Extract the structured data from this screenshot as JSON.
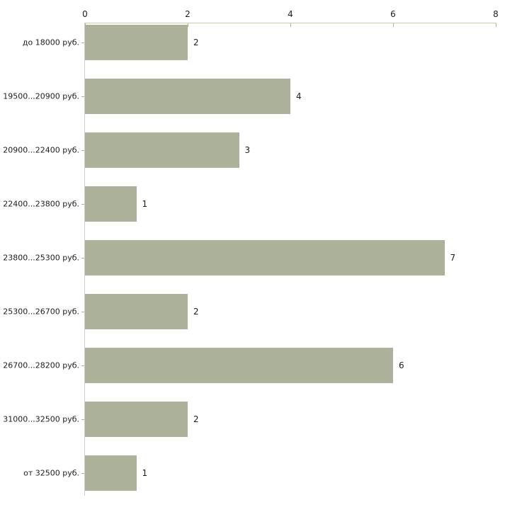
{
  "chart_data": {
    "type": "bar",
    "orientation": "horizontal",
    "title": "",
    "xlabel": "",
    "ylabel": "",
    "categories": [
      "до 18000 руб.",
      "19500...20900 руб.",
      "20900...22400 руб.",
      "22400...23800 руб.",
      "23800...25300 руб.",
      "25300...26700 руб.",
      "26700...28200 руб.",
      "31000...32500 руб.",
      "от 32500 руб."
    ],
    "values": [
      2,
      4,
      3,
      1,
      7,
      2,
      6,
      2,
      1
    ],
    "value_labels": [
      "2",
      "4",
      "3",
      "1",
      "7",
      "2",
      "6",
      "2",
      "1"
    ],
    "xlim": [
      0,
      8
    ],
    "x_ticks": [
      0,
      2,
      4,
      6,
      8
    ],
    "x_tick_labels": [
      "0",
      "2",
      "4",
      "6",
      "8"
    ],
    "axis_position": "top",
    "grid": false,
    "legend": "none",
    "colors": {
      "bar_fill": "#abb299",
      "top_axis_line": "#cdc9ae",
      "x_tick_mark": "#b3b096",
      "left_axis_line": "#cccccc",
      "category_tick_mark": "#aaaaaa",
      "text": "#1c1c1c",
      "background": "#ffffff"
    }
  }
}
